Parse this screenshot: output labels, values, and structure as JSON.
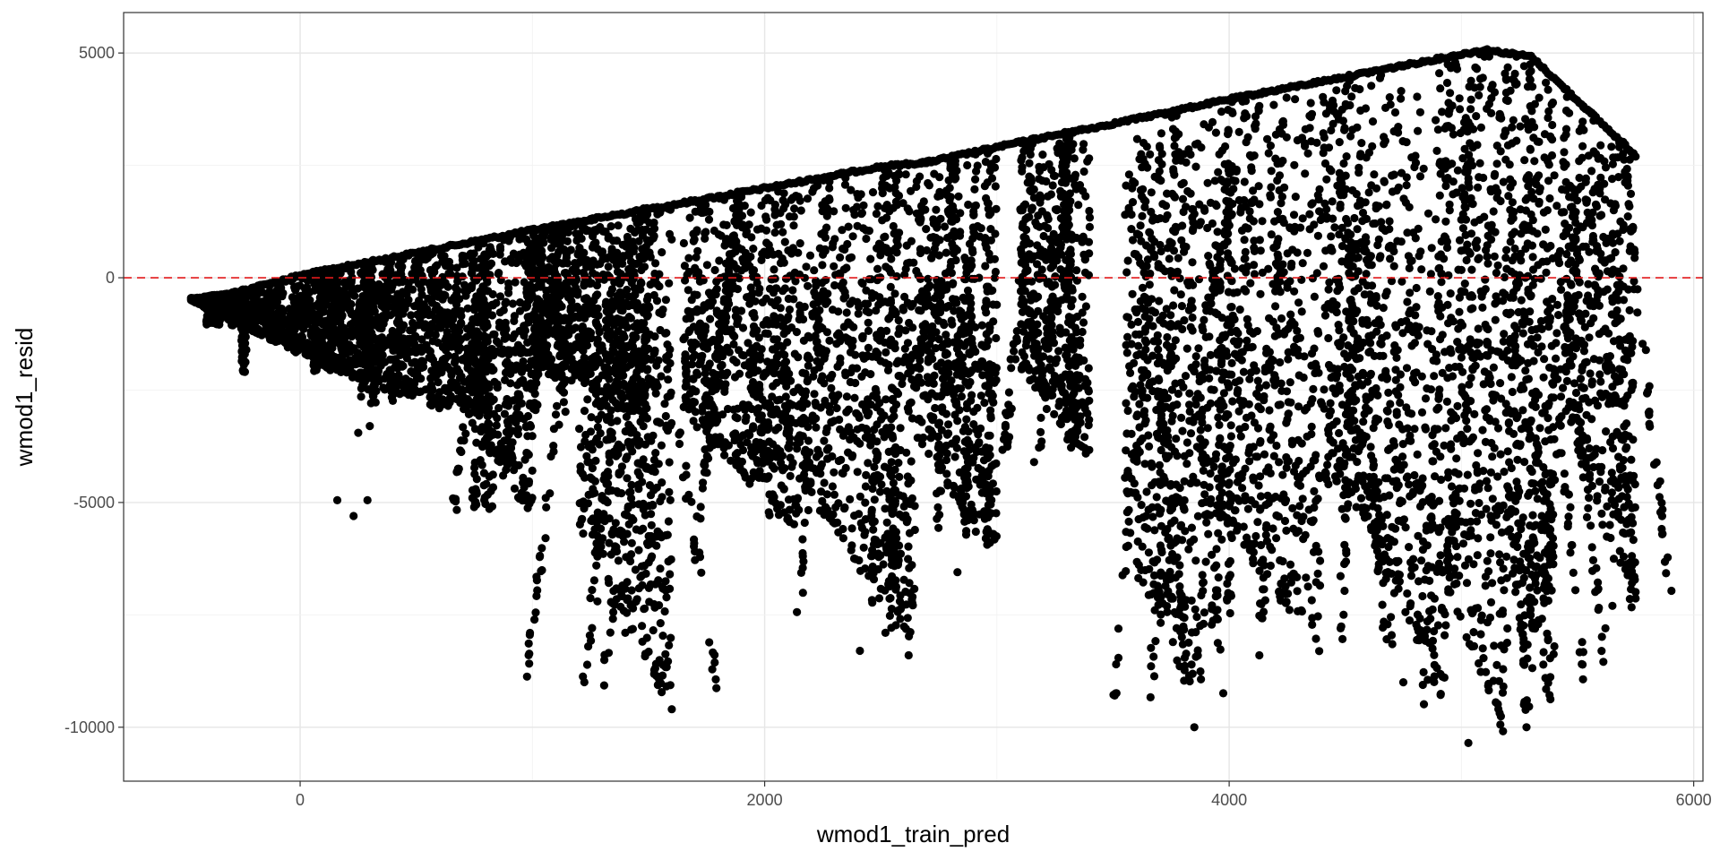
{
  "chart_data": {
    "type": "scatter",
    "title": "",
    "xlabel": "wmod1_train_pred",
    "ylabel": "wmod1_resid",
    "xlim": [
      -760,
      6040
    ],
    "ylim": [
      -11200,
      5900
    ],
    "x_ticks": [
      0,
      2000,
      4000,
      6000
    ],
    "x_tick_labels": [
      "0",
      "2000",
      "4000",
      "6000"
    ],
    "y_ticks": [
      -10000,
      -5000,
      0,
      5000
    ],
    "y_tick_labels": [
      "-10000",
      "-5000",
      "0",
      "5000"
    ],
    "grid": true,
    "legend": "none",
    "point_color": "#000000",
    "reference_line": {
      "y": 0,
      "style": "dashed",
      "color": "#e31a1c"
    },
    "upper_boundary": [
      [
        -460,
        -450
      ],
      [
        -300,
        -330
      ],
      [
        -150,
        -120
      ],
      [
        0,
        80
      ],
      [
        1000,
        1090
      ],
      [
        2000,
        2020
      ],
      [
        2500,
        2500
      ],
      [
        2700,
        2600
      ],
      [
        3150,
        3100
      ],
      [
        3400,
        3350
      ],
      [
        4000,
        4000
      ],
      [
        4500,
        4500
      ],
      [
        4900,
        4900
      ],
      [
        5100,
        5100
      ],
      [
        5300,
        4950
      ],
      [
        5750,
        2750
      ]
    ],
    "clusters": [
      {
        "x": [
          -470,
          -250
        ],
        "y_min": [
          -500,
          -1100
        ]
      },
      {
        "x": [
          -250,
          200
        ],
        "y_min": [
          -1100,
          -2200
        ]
      },
      {
        "x": [
          200,
          650
        ],
        "y_min": [
          -2200,
          -3000
        ]
      },
      {
        "x": [
          650,
          1000
        ],
        "y_min": [
          -2500,
          -5500
        ]
      },
      {
        "x": [
          1000,
          1500
        ],
        "y_min": [
          -2000,
          -3200
        ]
      },
      {
        "x": [
          1200,
          1600
        ],
        "y_min": [
          -5500,
          -9700
        ]
      },
      {
        "x": [
          1650,
          2150
        ],
        "y_min": [
          -3000,
          -5800
        ]
      },
      {
        "x": [
          2150,
          2650
        ],
        "y_min": [
          -4500,
          -8400
        ]
      },
      {
        "x": [
          2650,
          3000
        ],
        "y_min": [
          -3500,
          -6500
        ]
      },
      {
        "x": [
          3100,
          3400
        ],
        "y_min": [
          -2000,
          -4200
        ]
      },
      {
        "x": [
          3550,
          3900
        ],
        "y_min": [
          -6000,
          -10100
        ]
      },
      {
        "x": [
          3900,
          4400
        ],
        "y_min": [
          -5000,
          -8400
        ]
      },
      {
        "x": [
          4400,
          4900
        ],
        "y_min": [
          -4500,
          -8900
        ]
      },
      {
        "x": [
          4900,
          5200
        ],
        "y_min": [
          -6500,
          -10400
        ]
      },
      {
        "x": [
          5200,
          5400
        ],
        "y_min": [
          -5500,
          -10000
        ]
      },
      {
        "x": [
          5450,
          5750
        ],
        "y_min": [
          -3000,
          -7800
        ]
      }
    ],
    "outliers": [
      [
        160,
        -4950
      ],
      [
        230,
        -5300
      ],
      [
        250,
        -3450
      ],
      [
        290,
        -4950
      ],
      [
        300,
        -3300
      ],
      [
        1280,
        -7200
      ],
      [
        1400,
        -7900
      ],
      [
        1600,
        -9600
      ],
      [
        1330,
        -5900
      ],
      [
        2410,
        -8300
      ],
      [
        2620,
        -8400
      ],
      [
        2520,
        -7900
      ],
      [
        2830,
        -6550
      ],
      [
        3160,
        -4100
      ],
      [
        3350,
        -2800
      ],
      [
        3850,
        -10000
      ],
      [
        4130,
        -8400
      ],
      [
        4750,
        -9000
      ],
      [
        5030,
        -10350
      ],
      [
        5280,
        -10000
      ],
      [
        5620,
        -7800
      ],
      [
        5650,
        -7300
      ],
      [
        5400,
        -8200
      ]
    ]
  }
}
